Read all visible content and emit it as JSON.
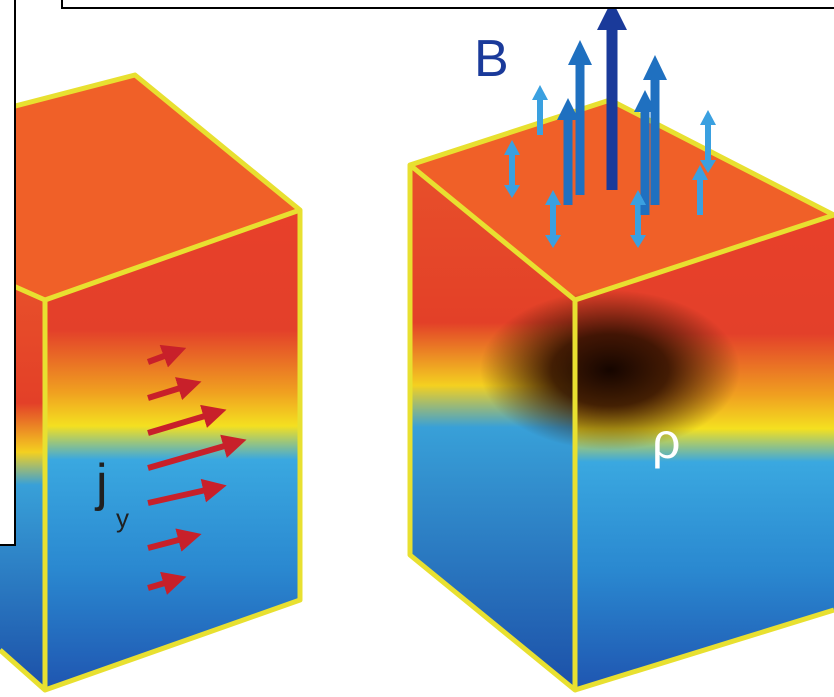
{
  "labels": {
    "field": "B",
    "current": "j",
    "current_subscript": "y",
    "density": "ρ"
  }
}
